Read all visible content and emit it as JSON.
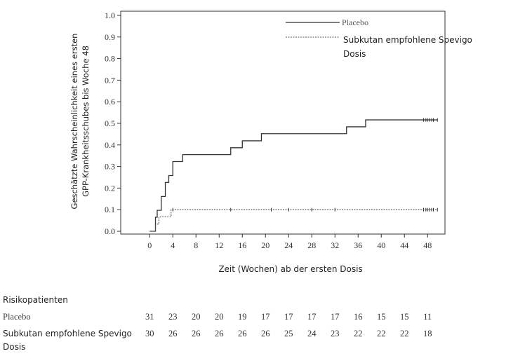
{
  "chart_data": {
    "type": "line",
    "title": "",
    "xlabel": "Zeit (Wochen) ab der ersten Dosis",
    "ylabel_lines": [
      "Geschätzte Wahrscheinlichkeit eines ersten",
      "GPP-Krankheitsschubes bis Woche 48"
    ],
    "xlim": [
      -5,
      51
    ],
    "ylim": [
      0,
      1
    ],
    "x_ticks": [
      0,
      4,
      8,
      12,
      16,
      20,
      24,
      28,
      32,
      36,
      40,
      44,
      48
    ],
    "y_ticks": [
      "0.0",
      "0.1",
      "0.2",
      "0.3",
      "0.4",
      "0.5",
      "0.6",
      "0.7",
      "0.8",
      "0.9",
      "1.0"
    ],
    "legend_position": "top-right",
    "series": [
      {
        "name": "Placebo",
        "style": "solid",
        "step_x": [
          0,
          1,
          1.3,
          2,
          2.7,
          3.3,
          4,
          5.7,
          14,
          16,
          19.3,
          34,
          37.3,
          49.7
        ],
        "step_y": [
          0,
          0.065,
          0.097,
          0.161,
          0.226,
          0.258,
          0.323,
          0.355,
          0.387,
          0.419,
          0.452,
          0.484,
          0.516,
          0.516
        ],
        "censor_x": [
          47.3,
          47.7,
          48,
          48.3,
          48.7,
          49,
          49.7
        ]
      },
      {
        "name": "Subkutan empfohlene Spevigo Dosis",
        "style": "dotted",
        "step_x": [
          0,
          1,
          1.6,
          2.3,
          3.7,
          49.7
        ],
        "step_y": [
          0,
          0.033,
          0.067,
          0.067,
          0.1,
          0.1
        ],
        "censor_x": [
          4,
          14,
          21,
          24,
          28,
          32,
          47.3,
          47.7,
          48,
          48.3,
          48.7,
          49,
          49.7
        ]
      }
    ],
    "risk_table": {
      "title": "Risikopatienten",
      "timepoints": [
        0,
        4,
        8,
        12,
        16,
        20,
        24,
        28,
        32,
        36,
        40,
        44,
        48
      ],
      "rows": [
        {
          "label": "Placebo",
          "values": [
            "31",
            "23",
            "20",
            "20",
            "19",
            "17",
            "17",
            "17",
            "17",
            "16",
            "15",
            "15",
            "11"
          ]
        },
        {
          "label": "Subkutan empfohlene Spevigo Dosis",
          "values": [
            "30",
            "26",
            "26",
            "26",
            "26",
            "26",
            "25",
            "24",
            "23",
            "22",
            "22",
            "22",
            "18"
          ]
        }
      ]
    }
  }
}
